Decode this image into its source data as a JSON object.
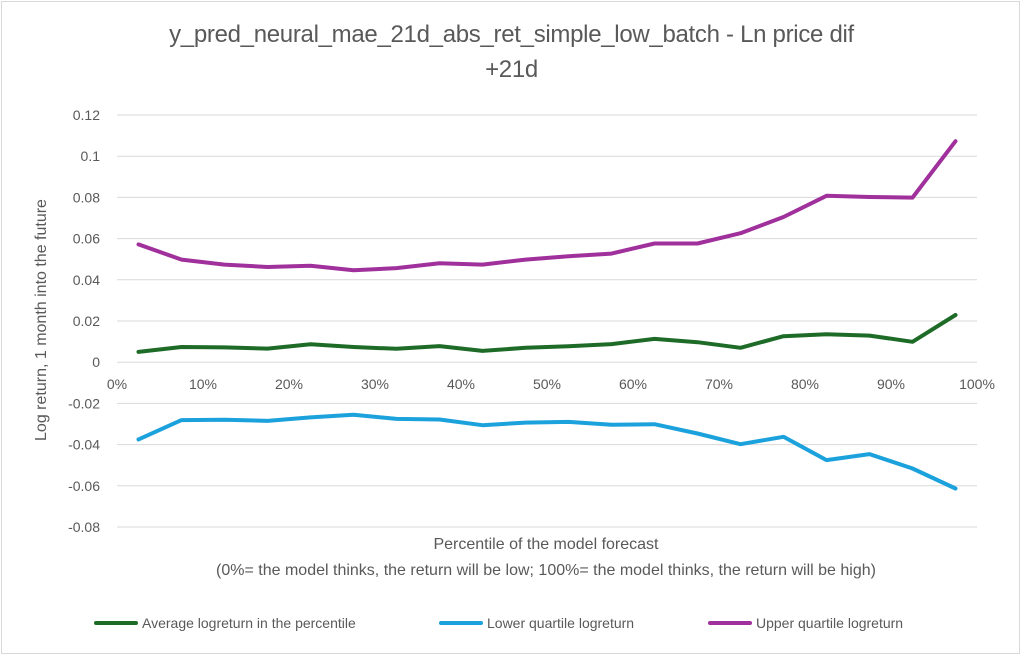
{
  "chart_data": {
    "type": "line",
    "title_line1": "y_pred_neural_mae_21d_abs_ret_simple_low_batch  -  Ln price dif",
    "title_line2": "+21d",
    "xlabel": "Percentile of the model forecast",
    "xlabel_note": "(0%= the model thinks, the return will be low; 100%= the model thinks, the return will be high)",
    "ylabel": "Log return, 1 month into the future",
    "xlim": [
      0,
      100
    ],
    "ylim": [
      -0.08,
      0.12
    ],
    "x_ticks": [
      "0%",
      "10%",
      "20%",
      "30%",
      "40%",
      "50%",
      "60%",
      "70%",
      "80%",
      "90%",
      "100%"
    ],
    "y_ticks": [
      "0.12",
      "0.1",
      "0.08",
      "0.06",
      "0.04",
      "0.02",
      "0",
      "-0.02",
      "-0.04",
      "-0.06",
      "-0.08"
    ],
    "y_tick_values": [
      0.12,
      0.1,
      0.08,
      0.06,
      0.04,
      0.02,
      0,
      -0.02,
      -0.04,
      -0.06,
      -0.08
    ],
    "x_tick_values": [
      0,
      10,
      20,
      30,
      40,
      50,
      60,
      70,
      80,
      90,
      100
    ],
    "grid": "horizontal",
    "legend_position": "bottom",
    "x": [
      2.5,
      7.5,
      12.5,
      17.5,
      22.5,
      27.5,
      32.5,
      37.5,
      42.5,
      47.5,
      52.5,
      57.5,
      62.5,
      67.5,
      72.5,
      77.5,
      82.5,
      87.5,
      92.5,
      97.5
    ],
    "series": [
      {
        "name": "Average logreturn in the percentile",
        "color": "#1e6b28",
        "values": [
          0.005,
          0.0074,
          0.0072,
          0.0066,
          0.0087,
          0.0074,
          0.0065,
          0.0078,
          0.0055,
          0.007,
          0.0077,
          0.0088,
          0.0113,
          0.0097,
          0.007,
          0.0126,
          0.0136,
          0.0129,
          0.0099,
          0.0229
        ]
      },
      {
        "name": "Lower quartile logreturn",
        "color": "#1ba1db",
        "values": [
          -0.0375,
          -0.0281,
          -0.0279,
          -0.0285,
          -0.0268,
          -0.0255,
          -0.0275,
          -0.0278,
          -0.0306,
          -0.0293,
          -0.029,
          -0.0304,
          -0.0301,
          -0.0346,
          -0.0398,
          -0.0362,
          -0.0475,
          -0.0446,
          -0.0516,
          -0.0613
        ]
      },
      {
        "name": "Upper quartile logreturn",
        "color": "#a0309b",
        "values": [
          0.0572,
          0.0498,
          0.0474,
          0.0462,
          0.0468,
          0.0446,
          0.0457,
          0.048,
          0.0474,
          0.0498,
          0.0514,
          0.0527,
          0.0576,
          0.0576,
          0.0626,
          0.0705,
          0.0808,
          0.0802,
          0.0799,
          0.1073
        ]
      }
    ]
  }
}
